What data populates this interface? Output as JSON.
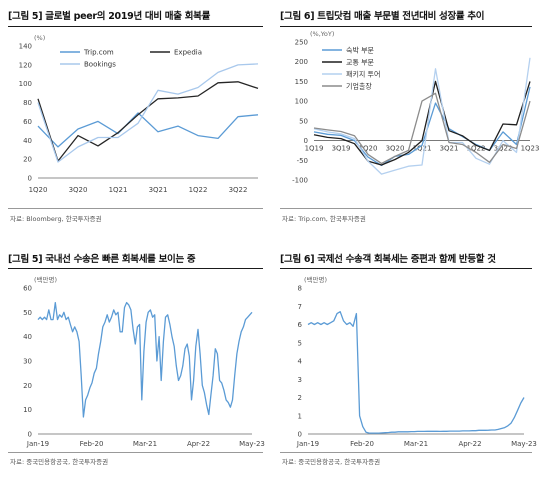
{
  "panels": [
    {
      "title": "[그림 5] 글로벌 peer의 2019년 대비 매출 회복률",
      "source": "자료: Bloomberg, 한국투자증권"
    },
    {
      "title": "[그림 6] 트립닷컴 매출 부문별 전년대비 성장률 추이",
      "source": "자료: Trip.com, 한국투자증권"
    },
    {
      "title": "[그림 5] 국내선 수송은 빠른 회복세를 보이는 중",
      "source": "자료: 중국민용항공국, 한국투자증권"
    },
    {
      "title": "[그림 6] 국제선 수송객 회복세는 증편과 함께 반등할 것",
      "source": "자료: 중국민용항공국, 한국투자증권"
    }
  ],
  "chart_data": [
    {
      "type": "line",
      "unit_label": "(%)",
      "x": [
        "1Q20",
        "2Q20",
        "3Q20",
        "4Q20",
        "1Q21",
        "2Q21",
        "3Q21",
        "4Q21",
        "1Q22",
        "2Q22",
        "3Q22",
        "4Q22"
      ],
      "x_tick_labels": [
        "1Q20",
        "",
        "3Q20",
        "",
        "1Q21",
        "",
        "3Q21",
        "",
        "1Q22",
        "",
        "3Q22",
        ""
      ],
      "ylim": [
        0,
        140
      ],
      "yticks": [
        0,
        20,
        40,
        60,
        80,
        100,
        120,
        140
      ],
      "legend": "top",
      "series": [
        {
          "name": "Trip.com",
          "color": "#5b9bd5",
          "values": [
            55,
            33,
            52,
            60,
            47,
            69,
            49,
            55,
            45,
            42,
            65,
            67
          ]
        },
        {
          "name": "Expedia",
          "color": "#262626",
          "values": [
            84,
            18,
            45,
            34,
            48,
            67,
            84,
            85,
            87,
            101,
            102,
            95
          ]
        },
        {
          "name": "Bookings",
          "color": "#a8c8ec",
          "values": [
            80,
            17,
            33,
            43,
            43,
            58,
            93,
            89,
            96,
            112,
            120,
            121
          ]
        }
      ]
    },
    {
      "type": "line",
      "unit_label": "(%,YoY)",
      "x": [
        "1Q19",
        "2Q19",
        "3Q19",
        "4Q19",
        "1Q20",
        "2Q20",
        "3Q20",
        "4Q20",
        "1Q21",
        "2Q21",
        "3Q21",
        "4Q21",
        "1Q22",
        "2Q22",
        "3Q22",
        "4Q22",
        "1Q23"
      ],
      "x_tick_labels": [
        "1Q19",
        "",
        "3Q19",
        "",
        "1Q20",
        "",
        "3Q20",
        "",
        "1Q21",
        "",
        "3Q21",
        "",
        "1Q22",
        "",
        "3Q22",
        "",
        "1Q23"
      ],
      "ylim": [
        -100,
        250
      ],
      "yticks": [
        -100,
        -50,
        0,
        50,
        100,
        150,
        200,
        250
      ],
      "legend": "top-left",
      "series": [
        {
          "name": "숙박 부문",
          "color": "#5b9bd5",
          "values": [
            22,
            16,
            13,
            0,
            -42,
            -63,
            -40,
            -35,
            -12,
            95,
            30,
            10,
            -10,
            -25,
            22,
            -10,
            136
          ]
        },
        {
          "name": "교통 부문",
          "color": "#1f1f1f",
          "values": [
            15,
            8,
            5,
            -8,
            -52,
            -62,
            -48,
            -30,
            0,
            150,
            25,
            12,
            -12,
            -25,
            42,
            40,
            150
          ]
        },
        {
          "name": "패키지 투어",
          "color": "#b4d0ef",
          "values": [
            30,
            22,
            17,
            5,
            -52,
            -85,
            -75,
            -65,
            -62,
            182,
            -5,
            -5,
            -45,
            -60,
            0,
            -30,
            210
          ]
        },
        {
          "name": "기업출장",
          "color": "#8c8c8c",
          "values": [
            32,
            27,
            23,
            12,
            -35,
            -58,
            -40,
            -25,
            100,
            120,
            -5,
            -10,
            -30,
            -55,
            -10,
            -20,
            100
          ]
        }
      ]
    },
    {
      "type": "line",
      "unit_label": "(백만명)",
      "x_tick_labels": [
        "Jan-19",
        "Feb-20",
        "Mar-21",
        "Apr-22",
        "May-23"
      ],
      "ylim": [
        0,
        60
      ],
      "yticks": [
        0,
        10,
        20,
        30,
        40,
        50,
        60
      ],
      "series": [
        {
          "name": "",
          "color": "#5b9bd5",
          "values": [
            47,
            48,
            47,
            48,
            47,
            51,
            47,
            47,
            54,
            47,
            49,
            48,
            50,
            47,
            48,
            45,
            42,
            44,
            42,
            38,
            24,
            7,
            14,
            16,
            19,
            21,
            25,
            27,
            33,
            38,
            44,
            46,
            49,
            46,
            48,
            51,
            49,
            50,
            42,
            42,
            52,
            54,
            53,
            51,
            43,
            37,
            44,
            45,
            14,
            34,
            46,
            50,
            51,
            48,
            49,
            30,
            40,
            22,
            38,
            48,
            49,
            45,
            40,
            36,
            28,
            22,
            24,
            28,
            35,
            37,
            32,
            14,
            22,
            36,
            43,
            33,
            20,
            17,
            12,
            8,
            16,
            24,
            35,
            33,
            22,
            21,
            18,
            14,
            13,
            11,
            14,
            24,
            33,
            38,
            42,
            44,
            47,
            48,
            49,
            50
          ]
        }
      ]
    },
    {
      "type": "line",
      "unit_label": "(백만명)",
      "x_tick_labels": [
        "Jan-19",
        "Feb-20",
        "Mar-21",
        "Apr-22",
        "May-23"
      ],
      "ylim": [
        0,
        8
      ],
      "yticks": [
        0,
        1,
        2,
        3,
        4,
        5,
        6,
        7,
        8
      ],
      "series": [
        {
          "name": "",
          "color": "#5b9bd5",
          "values": [
            6.0,
            6.1,
            6.0,
            6.1,
            6.0,
            6.1,
            6.0,
            6.1,
            6.2,
            6.6,
            6.7,
            6.2,
            6.0,
            6.1,
            5.9,
            6.6,
            1.0,
            0.4,
            0.1,
            0.05,
            0.05,
            0.05,
            0.05,
            0.06,
            0.07,
            0.08,
            0.1,
            0.1,
            0.12,
            0.12,
            0.12,
            0.12,
            0.13,
            0.13,
            0.14,
            0.14,
            0.14,
            0.15,
            0.15,
            0.15,
            0.15,
            0.14,
            0.15,
            0.15,
            0.16,
            0.16,
            0.16,
            0.16,
            0.17,
            0.17,
            0.17,
            0.18,
            0.18,
            0.2,
            0.2,
            0.2,
            0.21,
            0.22,
            0.22,
            0.25,
            0.3,
            0.35,
            0.45,
            0.6,
            0.9,
            1.3,
            1.7,
            2.0
          ]
        }
      ]
    }
  ]
}
